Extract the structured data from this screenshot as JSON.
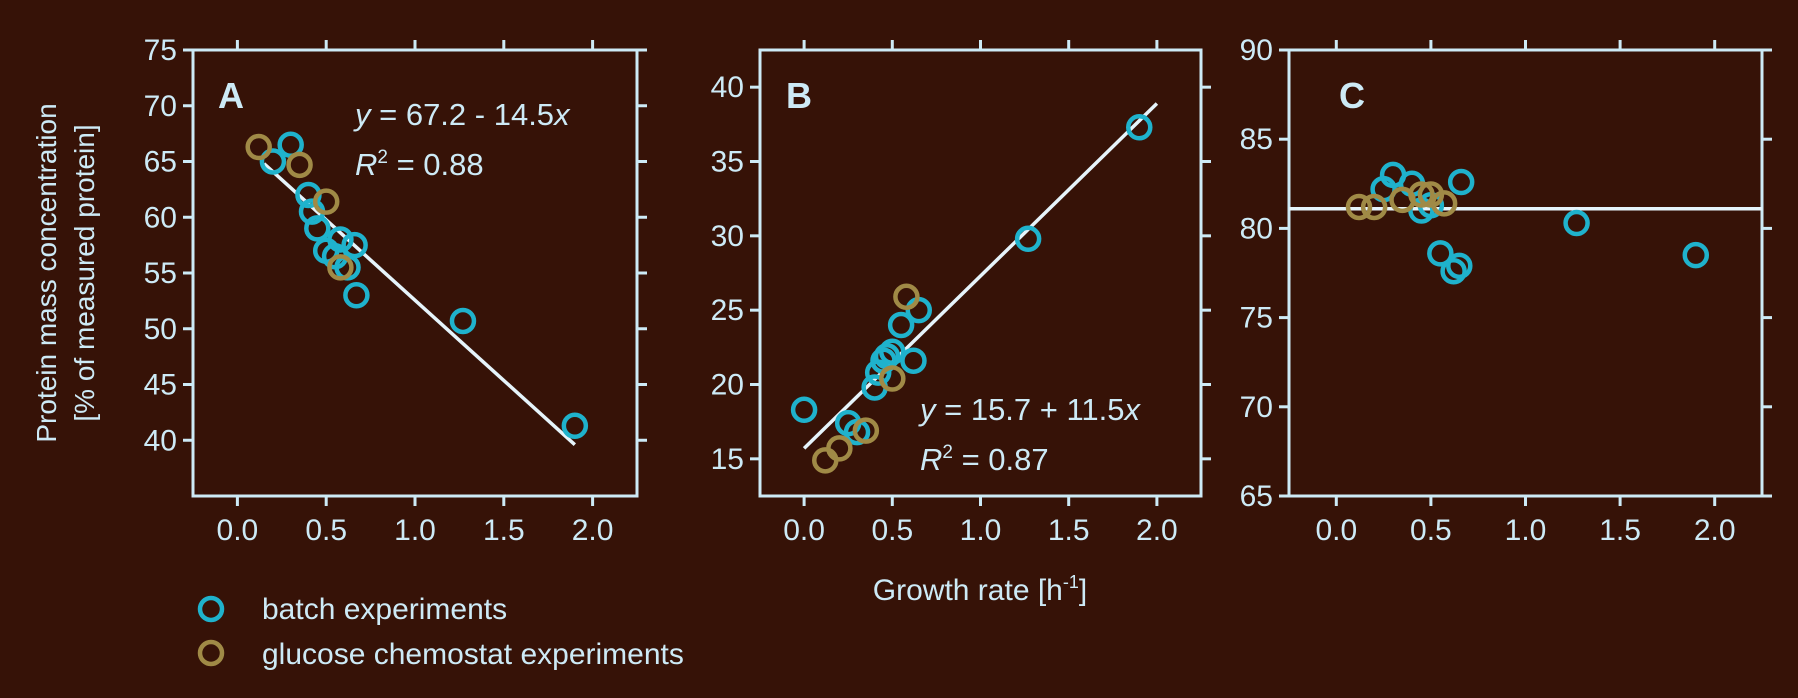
{
  "colors": {
    "background": "#361207",
    "axis": "#cdeaf6",
    "batch": "#1fb2cc",
    "chemostat": "#a08a46"
  },
  "shared": {
    "ylabel_line1": "Protein mass concentration",
    "ylabel_line2": "[% of measured protein]",
    "xlabel_main": "Growth rate [h",
    "xlabel_sup": "-1",
    "xlabel_end": "]"
  },
  "legend": [
    {
      "label": "batch experiments",
      "series": "batch"
    },
    {
      "label": "glucose chemostat experiments",
      "series": "chemostat"
    }
  ],
  "chart_data": [
    {
      "type": "scatter",
      "panel": "A",
      "xlim": [
        -0.25,
        2.25
      ],
      "ylim": [
        35,
        75
      ],
      "xticks": [
        "0.0",
        "0.5",
        "1.0",
        "1.5",
        "2.0"
      ],
      "yticks": [
        "40",
        "45",
        "50",
        "55",
        "60",
        "65",
        "70",
        "75"
      ],
      "fit_label": {
        "pre": "y",
        "mid": " = 67.2 - 14.5",
        "post": "x",
        "r": "R",
        "exp": "2",
        "r_rest": " = 0.88"
      },
      "fit_line": {
        "x": [
          0.15,
          1.9
        ],
        "y": [
          64.8,
          39.6
        ]
      },
      "series": [
        {
          "name": "batch experiments",
          "key": "batch",
          "x": [
            0.2,
            0.3,
            0.4,
            0.42,
            0.45,
            0.5,
            0.55,
            0.58,
            0.62,
            0.66,
            0.67,
            1.27,
            1.9
          ],
          "y": [
            65.0,
            66.5,
            62.0,
            60.5,
            59.0,
            57.0,
            56.5,
            58.0,
            55.5,
            57.5,
            53.0,
            50.7,
            41.3
          ]
        },
        {
          "name": "glucose chemostat experiments",
          "key": "chemostat",
          "x": [
            0.12,
            0.35,
            0.5,
            0.58
          ],
          "y": [
            66.3,
            64.7,
            61.4,
            55.5
          ]
        }
      ]
    },
    {
      "type": "scatter",
      "panel": "B",
      "xlim": [
        -0.25,
        2.25
      ],
      "ylim": [
        12.5,
        42.5
      ],
      "xticks": [
        "0.0",
        "0.5",
        "1.0",
        "1.5",
        "2.0"
      ],
      "yticks": [
        "15",
        "20",
        "25",
        "30",
        "35",
        "40"
      ],
      "fit_label": {
        "pre": "y",
        "mid": " = 15.7 + 11.5",
        "post": "x",
        "r": "R",
        "exp": "2",
        "r_rest": " = 0.87"
      },
      "fit_line": {
        "x": [
          0.0,
          2.0
        ],
        "y": [
          15.7,
          38.9
        ]
      },
      "series": [
        {
          "name": "batch experiments",
          "key": "batch",
          "x": [
            0.0,
            0.25,
            0.3,
            0.4,
            0.42,
            0.45,
            0.5,
            0.55,
            0.62,
            0.65,
            1.27,
            1.9
          ],
          "y": [
            18.3,
            17.4,
            16.8,
            19.8,
            20.8,
            21.6,
            22.2,
            24.0,
            21.6,
            25.0,
            29.8,
            37.3
          ],
          "extra_x": [
            0.47
          ],
          "extra_y": [
            21.9
          ]
        },
        {
          "name": "glucose chemostat experiments",
          "key": "chemostat",
          "x": [
            0.12,
            0.2,
            0.35,
            0.5,
            0.58
          ],
          "y": [
            14.9,
            15.7,
            16.9,
            20.4,
            25.9
          ]
        }
      ]
    },
    {
      "type": "scatter",
      "panel": "C",
      "xlim": [
        -0.25,
        2.25
      ],
      "ylim": [
        65,
        90
      ],
      "xticks": [
        "0.0",
        "0.5",
        "1.0",
        "1.5",
        "2.0"
      ],
      "yticks": [
        "65",
        "70",
        "75",
        "80",
        "85",
        "90"
      ],
      "fit_label": null,
      "fit_line": {
        "x": [
          -0.25,
          2.25
        ],
        "y": [
          81.1,
          81.1
        ]
      },
      "series": [
        {
          "name": "batch experiments",
          "key": "batch",
          "x": [
            0.25,
            0.3,
            0.4,
            0.45,
            0.5,
            0.55,
            0.62,
            0.65,
            0.66,
            1.27,
            1.9
          ],
          "y": [
            82.2,
            83.0,
            82.5,
            81.0,
            81.3,
            78.6,
            77.6,
            77.9,
            82.6,
            80.3,
            78.5
          ]
        },
        {
          "name": "glucose chemostat experiments",
          "key": "chemostat",
          "x": [
            0.12,
            0.2,
            0.35,
            0.45,
            0.5,
            0.57
          ],
          "y": [
            81.2,
            81.2,
            81.6,
            81.9,
            81.9,
            81.4
          ]
        }
      ]
    }
  ]
}
